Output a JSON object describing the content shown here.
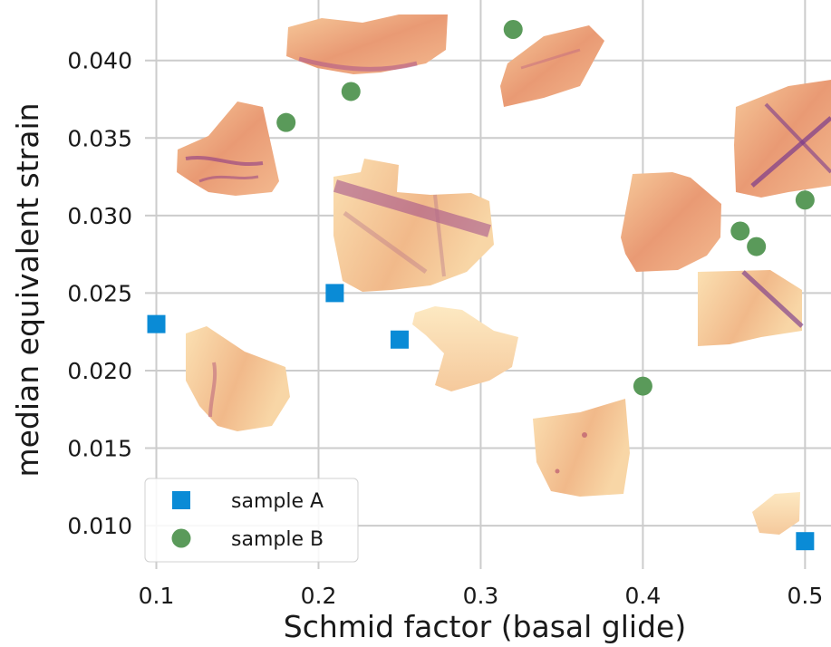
{
  "chart_data": {
    "type": "scatter",
    "title": "",
    "xlabel": "Schmid factor (basal glide)",
    "ylabel": "median equivalent strain",
    "xlim": [
      0.093,
      0.516
    ],
    "ylim": [
      0.0072,
      0.0439
    ],
    "x_ticks": [
      0.1,
      0.2,
      0.3,
      0.4,
      0.5
    ],
    "x_tick_labels": [
      "0.1",
      "0.2",
      "0.3",
      "0.4",
      "0.5"
    ],
    "y_ticks": [
      0.01,
      0.015,
      0.02,
      0.025,
      0.03,
      0.035,
      0.04
    ],
    "y_tick_labels": [
      "0.010",
      "0.015",
      "0.020",
      "0.025",
      "0.030",
      "0.035",
      "0.040"
    ],
    "grid": true,
    "legend_position": "bottom-left",
    "series": [
      {
        "name": "sample A",
        "marker": "square",
        "color": "#0a8bd6",
        "points": [
          {
            "x": 0.1,
            "y": 0.023
          },
          {
            "x": 0.21,
            "y": 0.025
          },
          {
            "x": 0.25,
            "y": 0.022
          },
          {
            "x": 0.5,
            "y": 0.009
          }
        ]
      },
      {
        "name": "sample B",
        "marker": "circle",
        "color": "#5a9a5a",
        "points": [
          {
            "x": 0.18,
            "y": 0.036
          },
          {
            "x": 0.22,
            "y": 0.038
          },
          {
            "x": 0.32,
            "y": 0.042
          },
          {
            "x": 0.4,
            "y": 0.019
          },
          {
            "x": 0.46,
            "y": 0.029
          },
          {
            "x": 0.47,
            "y": 0.028
          },
          {
            "x": 0.5,
            "y": 0.031
          }
        ]
      }
    ],
    "image_insets": {
      "description": "grain strain map thumbnails",
      "colors": {
        "light": "#fbe3b4",
        "mid": "#eb9b6c",
        "dark": "#7a2e8f"
      },
      "count": 11
    }
  }
}
